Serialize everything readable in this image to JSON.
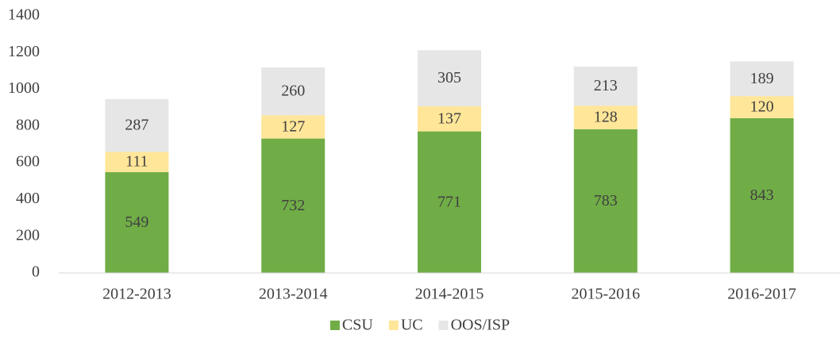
{
  "chart_data": {
    "type": "stacked_bar",
    "categories": [
      "2012-2013",
      "2013-2014",
      "2014-2015",
      "2015-2016",
      "2016-2017"
    ],
    "series": [
      {
        "name": "CSU",
        "color": "#70ad47",
        "values": [
          549,
          732,
          771,
          783,
          843
        ]
      },
      {
        "name": "UC",
        "color": "#ffe699",
        "values": [
          111,
          127,
          137,
          128,
          120
        ]
      },
      {
        "name": "OOS/ISP",
        "color": "#e6e6e6",
        "values": [
          287,
          260,
          305,
          213,
          189
        ]
      }
    ],
    "ylim": [
      0,
      1400
    ],
    "yticks": [
      0,
      200,
      400,
      600,
      800,
      1000,
      1200,
      1400
    ],
    "grid": false,
    "legend": "bottom"
  }
}
